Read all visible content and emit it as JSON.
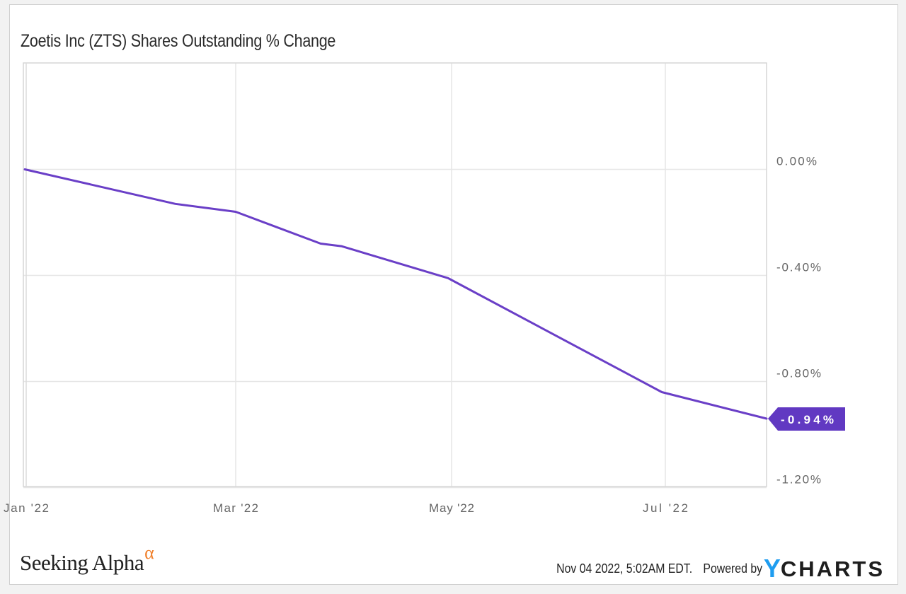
{
  "header": {
    "title": "Zoetis Inc (ZTS) Shares Outstanding % Change"
  },
  "colors": {
    "series": "#6a3fc7",
    "label_bg": "#6139c2",
    "grid": "#e6e6e6",
    "axis_text": "#666666",
    "alpha_orange": "#f07f2a",
    "ycharts_blue": "#1f9df0"
  },
  "footer": {
    "brand": "Seeking Alpha",
    "brand_symbol": "α",
    "timestamp": "Nov 04 2022, 5:02AM EDT.",
    "powered_by": "Powered by",
    "ycharts_y": "Y",
    "ycharts_rest": "CHARTS"
  },
  "axes": {
    "y_ticks": [
      "0.00%",
      "-0.40%",
      "-0.80%",
      "-1.20%"
    ],
    "x_ticks": [
      "Jan '22",
      "Mar '22",
      "May '22",
      "Jul '22"
    ]
  },
  "last_value_label": "-0.94%",
  "chart_data": {
    "type": "line",
    "title": "Zoetis Inc (ZTS) Shares Outstanding % Change",
    "xlabel": "",
    "ylabel": "",
    "ylim": [
      -1.2,
      0.35
    ],
    "grid": true,
    "legend": "none",
    "y_axis_position": "right",
    "x_tick_labels": [
      "Jan '22",
      "Mar '22",
      "May '22",
      "Jul '22"
    ],
    "y_tick_labels": [
      "0.00%",
      "-0.40%",
      "-0.80%",
      "-1.20%"
    ],
    "series": [
      {
        "name": "Zoetis Inc (ZTS) Shares Outstanding % Change",
        "x": [
          "2021-12-31",
          "2022-02-12",
          "2022-03-01",
          "2022-03-25",
          "2022-03-31",
          "2022-04-30",
          "2022-06-30",
          "2022-07-31"
        ],
        "values": [
          0.0,
          -0.13,
          -0.16,
          -0.28,
          -0.29,
          -0.41,
          -0.84,
          -0.94
        ]
      }
    ],
    "annotations": [
      {
        "type": "last-value-label",
        "text": "-0.94%"
      }
    ]
  }
}
